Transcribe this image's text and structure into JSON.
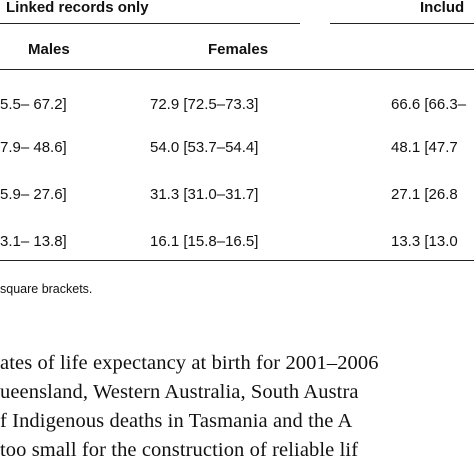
{
  "table": {
    "group_headers": [
      "Linked records only",
      "Includ"
    ],
    "col_headers": [
      "Males",
      "Females"
    ],
    "rows": [
      [
        "5.5– 67.2]",
        "72.9 [72.5–73.3]",
        "66.6 [66.3–"
      ],
      [
        "7.9– 48.6]",
        "54.0 [53.7–54.4]",
        "48.1 [47.7"
      ],
      [
        "5.9– 27.6]",
        "31.3 [31.0–31.7]",
        "27.1 [26.8"
      ],
      [
        "3.1– 13.8]",
        "16.1 [15.8–16.5]",
        "13.3 [13.0"
      ]
    ],
    "footnote": "square brackets."
  },
  "paragraph": [
    "ates of life expectancy at birth for 2001–2006",
    "ueensland, Western Australia, South Austra",
    "f Indigenous deaths in Tasmania and the A",
    "too small for the construction of reliable lif"
  ]
}
